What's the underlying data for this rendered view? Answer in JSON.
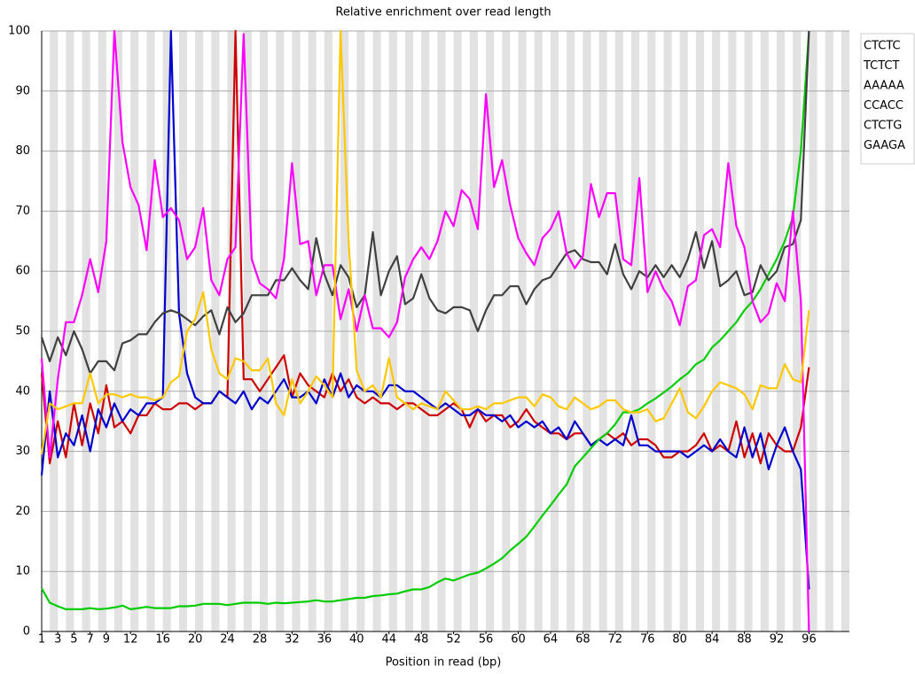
{
  "chart_data": {
    "type": "line",
    "title": "Relative enrichment over read length",
    "x_label": "Position in read (bp)",
    "x": [
      1,
      2,
      3,
      4,
      5,
      6,
      7,
      8,
      9,
      10,
      11,
      12,
      13,
      14,
      15,
      16,
      17,
      18,
      19,
      20,
      21,
      22,
      23,
      24,
      25,
      26,
      27,
      28,
      29,
      30,
      31,
      32,
      33,
      34,
      35,
      36,
      37,
      38,
      39,
      40,
      41,
      42,
      43,
      44,
      45,
      46,
      47,
      48,
      49,
      50,
      51,
      52,
      53,
      54,
      55,
      56,
      57,
      58,
      59,
      60,
      61,
      62,
      63,
      64,
      65,
      66,
      67,
      68,
      69,
      70,
      71,
      72,
      73,
      74,
      75,
      76,
      77,
      78,
      79,
      80,
      81,
      82,
      83,
      84,
      85,
      86,
      87,
      88,
      89,
      90,
      91,
      92,
      93,
      94,
      95,
      96
    ],
    "xlim": [
      1,
      101
    ],
    "xticks": [
      1,
      3,
      5,
      7,
      9,
      12,
      16,
      20,
      24,
      28,
      32,
      36,
      40,
      44,
      48,
      52,
      56,
      60,
      64,
      68,
      72,
      76,
      80,
      84,
      88,
      92,
      96
    ],
    "ylim": [
      0,
      100
    ],
    "yticks": [
      0,
      10,
      20,
      30,
      40,
      50,
      60,
      70,
      80,
      90,
      100
    ],
    "grid": true,
    "legend": "top-right",
    "series": [
      {
        "name": "CTCTC",
        "color": "#cc0000",
        "values": [
          43,
          28,
          35,
          29,
          38,
          31,
          38,
          33,
          41,
          34,
          35,
          33,
          36,
          36,
          38,
          37,
          37,
          38,
          38,
          37,
          38,
          38,
          40,
          39,
          100,
          42,
          42,
          40,
          42,
          44,
          46,
          39,
          43,
          41,
          40,
          39,
          43,
          40,
          42,
          39,
          38,
          39,
          38,
          38,
          37,
          38,
          38,
          37,
          36,
          36,
          37,
          38,
          37,
          34,
          37,
          35,
          36,
          36,
          34,
          35,
          37,
          35,
          34,
          33,
          33,
          32,
          33,
          33,
          31,
          32,
          33,
          32,
          33,
          31,
          32,
          32,
          31,
          29,
          29,
          30,
          30,
          31,
          33,
          30,
          31,
          30,
          35,
          29,
          33,
          28,
          33,
          31,
          30,
          30,
          34,
          44
        ]
      },
      {
        "name": "TCTCT",
        "color": "#0000cc",
        "values": [
          26,
          40,
          29,
          33,
          31,
          36,
          30,
          37,
          34,
          38,
          35,
          37,
          36,
          38,
          38,
          39,
          100,
          53,
          43,
          39,
          38,
          38,
          40,
          39,
          38,
          40,
          37,
          39,
          38,
          40,
          42,
          39,
          39,
          40,
          38,
          42,
          39,
          43,
          39,
          41,
          40,
          40,
          39,
          41,
          41,
          40,
          40,
          39,
          38,
          37,
          38,
          37,
          36,
          36,
          37,
          36,
          36,
          35,
          36,
          34,
          35,
          34,
          35,
          33,
          34,
          32,
          35,
          33,
          31,
          32,
          31,
          32,
          31,
          36,
          31,
          31,
          30,
          30,
          30,
          30,
          29,
          30,
          31,
          30,
          32,
          30,
          29,
          34,
          29,
          33,
          27,
          31,
          34,
          30,
          27,
          7
        ]
      },
      {
        "name": "AAAAA",
        "color": "#00cc00",
        "values": [
          7.2,
          4.8,
          4.2,
          3.7,
          3.7,
          3.7,
          3.9,
          3.7,
          3.8,
          4,
          4.3,
          3.7,
          3.9,
          4.1,
          3.9,
          3.9,
          3.9,
          4.2,
          4.2,
          4.3,
          4.6,
          4.6,
          4.6,
          4.4,
          4.6,
          4.8,
          4.8,
          4.8,
          4.6,
          4.8,
          4.7,
          4.8,
          4.9,
          5,
          5.2,
          5,
          5,
          5.2,
          5.4,
          5.6,
          5.6,
          5.9,
          6,
          6.2,
          6.3,
          6.7,
          7,
          7,
          7.4,
          8.2,
          8.8,
          8.5,
          9,
          9.5,
          9.8,
          10.5,
          11.3,
          12.2,
          13.5,
          14.6,
          15.8,
          17.5,
          19.3,
          21,
          22.8,
          24.5,
          27.5,
          29,
          30.5,
          32,
          33,
          34.5,
          36.5,
          36.5,
          37,
          38,
          38.8,
          39.8,
          40.8,
          42,
          43,
          44.5,
          45.3,
          47.3,
          48.5,
          50,
          51.5,
          53.5,
          55,
          57,
          59.5,
          62,
          65,
          69,
          80,
          100
        ]
      },
      {
        "name": "CCACC",
        "color": "#404040",
        "values": [
          49,
          45,
          49,
          46,
          50,
          47,
          43,
          45,
          45,
          43.5,
          48,
          48.5,
          49.5,
          49.5,
          51.5,
          53,
          53.5,
          53,
          52,
          51,
          52.5,
          53.5,
          49.5,
          54,
          51.5,
          53,
          56,
          56,
          56,
          58.5,
          58.5,
          60.5,
          58.5,
          57,
          65.5,
          59.5,
          56,
          61,
          59,
          54,
          56,
          66.5,
          56,
          60,
          62.5,
          54.5,
          55.5,
          59.5,
          55.5,
          53.5,
          53,
          54,
          54,
          53.5,
          50,
          53.5,
          56,
          56,
          57.5,
          57.5,
          54.5,
          57,
          58.5,
          59,
          61,
          63,
          63.5,
          62,
          61.5,
          61.5,
          59.5,
          64.5,
          59.5,
          57,
          60,
          59,
          61,
          59,
          61,
          59,
          62,
          66.5,
          60.5,
          65,
          57.5,
          58.5,
          60,
          56,
          56.5,
          61,
          58.5,
          60,
          64,
          64.5,
          68.5,
          100
        ]
      },
      {
        "name": "CTCTG",
        "color": "#ff00ff",
        "values": [
          45.5,
          29,
          42,
          51.5,
          51.5,
          56,
          62,
          56.5,
          65,
          100,
          81.5,
          74,
          71,
          63.5,
          78.5,
          69,
          70.5,
          68.5,
          62,
          64,
          70.5,
          58.5,
          56,
          62,
          64,
          99.5,
          62,
          58,
          57,
          55.5,
          62,
          78,
          64.5,
          65,
          56,
          61,
          61,
          52,
          57,
          50,
          56,
          50.5,
          50.5,
          49,
          51.5,
          59,
          62,
          64,
          62,
          65,
          70,
          67.5,
          73.5,
          72,
          67,
          89.5,
          74,
          78.5,
          71,
          65.5,
          63,
          61,
          65.5,
          67,
          70,
          63,
          60.5,
          62.5,
          74.5,
          69,
          73,
          73,
          62,
          61,
          75.5,
          56.5,
          60,
          57,
          55,
          51,
          57.5,
          58.5,
          66,
          67,
          64,
          78,
          67.5,
          64,
          55,
          51.5,
          53,
          58,
          55,
          70,
          55,
          0
        ]
      },
      {
        "name": "GAAGA",
        "color": "#ffc800",
        "values": [
          29.5,
          38,
          37,
          37.5,
          38,
          38,
          43,
          38,
          39.5,
          39.5,
          39,
          39.5,
          39,
          39,
          38.5,
          39,
          41.5,
          42.5,
          50,
          52,
          56.5,
          47,
          43,
          42,
          45.5,
          45,
          43.5,
          43.5,
          45.5,
          38,
          36,
          42,
          38,
          40,
          42.5,
          41,
          39,
          100,
          65,
          43.5,
          40,
          41,
          39,
          45.5,
          39,
          38,
          37,
          38,
          37.5,
          37,
          40,
          38.5,
          37,
          37,
          37.5,
          37,
          38,
          38,
          38.5,
          39,
          39,
          37.5,
          39.5,
          39,
          37.5,
          37,
          39,
          38,
          37,
          37.5,
          38.5,
          38.5,
          37,
          36.5,
          36.5,
          37,
          35,
          35.5,
          38,
          40.5,
          36.5,
          35.5,
          37.5,
          40,
          41.5,
          41,
          40.5,
          39.5,
          37,
          41,
          40.5,
          40.5,
          44.5,
          42,
          41.5,
          53.5
        ]
      }
    ]
  }
}
